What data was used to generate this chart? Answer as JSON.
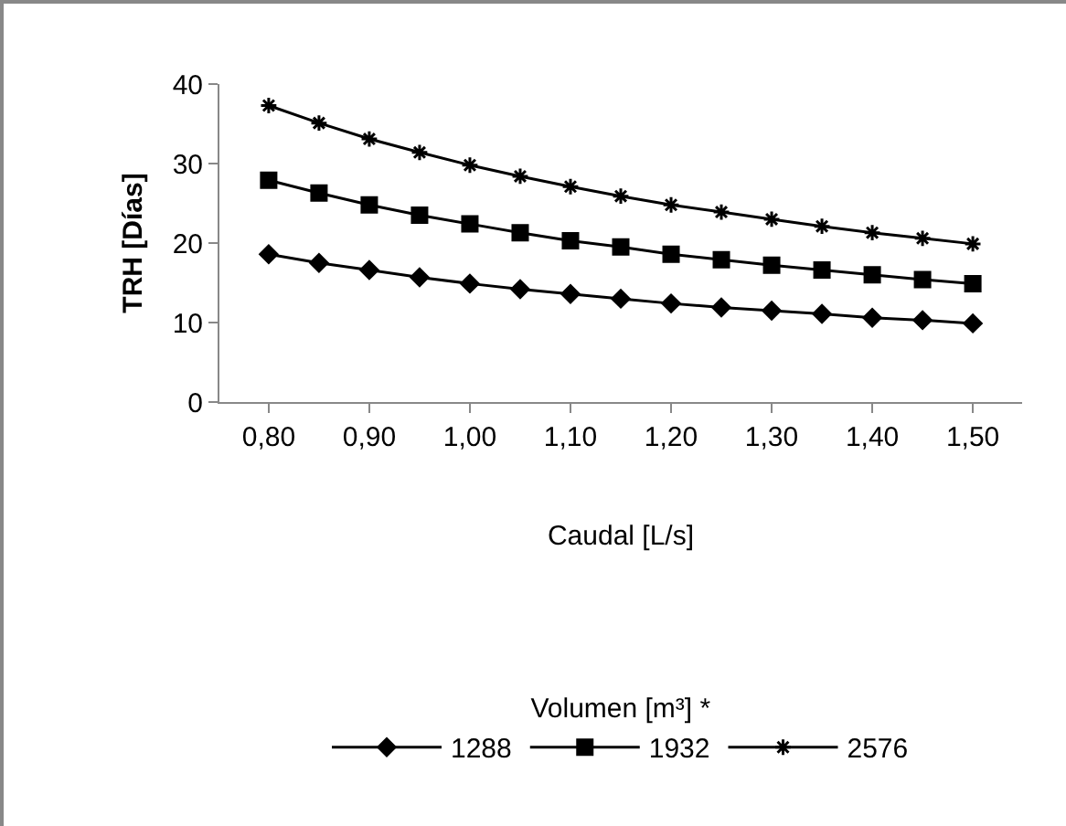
{
  "chart_data": {
    "type": "line",
    "xlabel": "Caudal [L/s]",
    "ylabel": "TRH [Días]",
    "legend_title": "Volumen [m³] *",
    "categories": [
      "0,80",
      null,
      "0,90",
      null,
      "1,00",
      null,
      "1,10",
      null,
      "1,20",
      null,
      "1,30",
      null,
      "1,40",
      null,
      "1,50"
    ],
    "series": [
      {
        "name": "1288",
        "color": "#000000",
        "marker": "diamond",
        "values": [
          18.6,
          17.5,
          16.6,
          15.7,
          14.9,
          14.2,
          13.6,
          13.0,
          12.4,
          11.9,
          11.5,
          11.1,
          10.6,
          10.3,
          9.9
        ]
      },
      {
        "name": "1932",
        "color": "#000000",
        "marker": "square",
        "values": [
          27.9,
          26.3,
          24.8,
          23.5,
          22.4,
          21.3,
          20.3,
          19.5,
          18.6,
          17.9,
          17.2,
          16.6,
          16.0,
          15.4,
          14.9
        ]
      },
      {
        "name": "2576",
        "color": "#000000",
        "marker": "cross",
        "values": [
          37.3,
          35.1,
          33.1,
          31.4,
          29.8,
          28.4,
          27.1,
          25.9,
          24.8,
          23.9,
          23.0,
          22.1,
          21.3,
          20.6,
          19.9
        ]
      }
    ],
    "ylim": [
      0,
      40
    ],
    "yticks": [
      0,
      10,
      20,
      30,
      40
    ],
    "grid": false,
    "legend": "bottom",
    "line_style": "solid"
  }
}
